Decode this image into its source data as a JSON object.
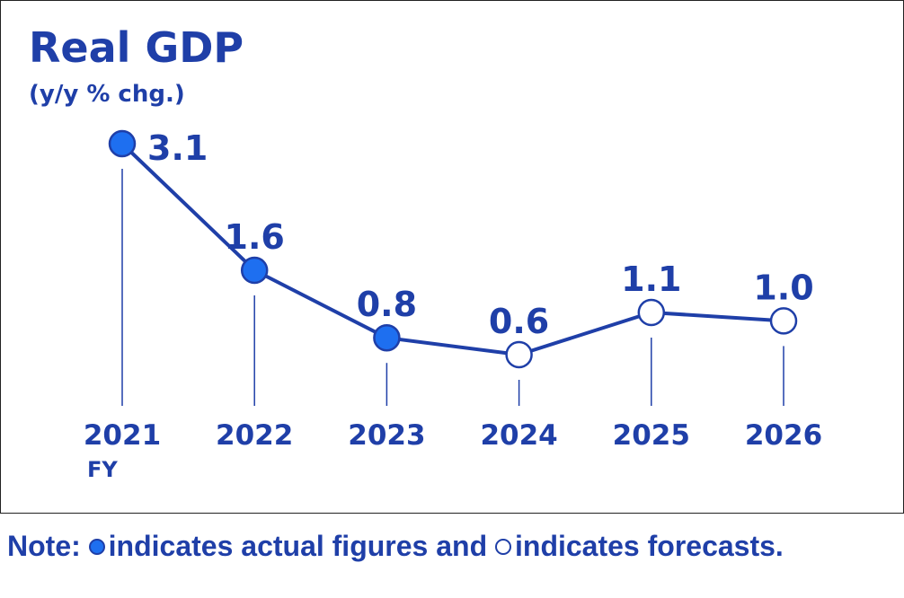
{
  "chart_data": {
    "type": "line",
    "title": "Real GDP",
    "subtitle": "(y/y % chg.)",
    "categories": [
      "2021",
      "2022",
      "2023",
      "2024",
      "2025",
      "2026"
    ],
    "x_unit_label": "FY",
    "series": [
      {
        "values": [
          3.1,
          1.6,
          0.8,
          0.6,
          1.1,
          1.0
        ],
        "value_labels": [
          "3.1",
          "1.6",
          "0.8",
          "0.6",
          "1.1",
          "1.0"
        ],
        "point_status": [
          "actual",
          "actual",
          "actual",
          "forecast",
          "forecast",
          "forecast"
        ]
      }
    ],
    "ylim": [
      0.6,
      3.1
    ],
    "grid": false,
    "legend": "none"
  },
  "note": {
    "prefix": "Note:",
    "actual_text": "indicates actual figures and",
    "forecast_text": "indicates forecasts."
  },
  "colors": {
    "primary": "#1f3fa8",
    "actual_fill": "#1e6ff0",
    "forecast_fill": "#ffffff",
    "frame": "#222222"
  }
}
